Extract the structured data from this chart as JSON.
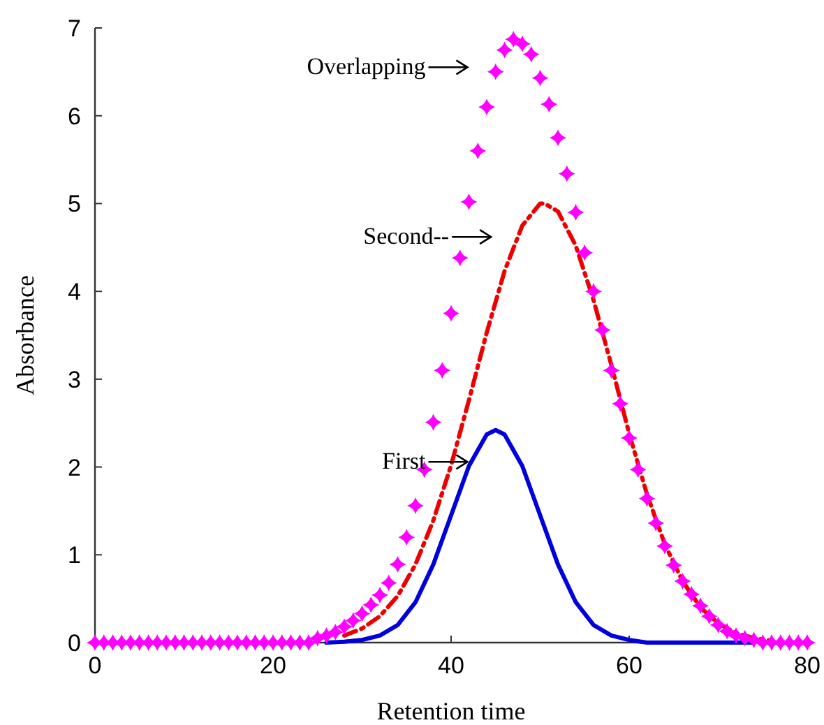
{
  "chart_data": {
    "type": "line",
    "xlabel": "Retention time",
    "ylabel": "Absorbance",
    "xlim": [
      0,
      80
    ],
    "ylim": [
      0,
      7
    ],
    "xticks": [
      0,
      20,
      40,
      60,
      80
    ],
    "yticks": [
      0,
      1,
      2,
      3,
      4,
      5,
      6,
      7
    ],
    "grid": false,
    "series": [
      {
        "type": "scatter",
        "marker": "diamond",
        "color": "#ff00ff",
        "x": [
          0,
          1,
          2,
          3,
          4,
          5,
          6,
          7,
          8,
          9,
          10,
          11,
          12,
          13,
          14,
          15,
          16,
          17,
          18,
          19,
          20,
          21,
          22,
          23,
          24,
          25,
          26,
          27,
          28,
          29,
          30,
          31,
          32,
          33,
          34,
          35,
          36,
          37,
          38,
          39,
          40,
          41,
          42,
          43,
          44,
          45,
          46,
          47,
          48,
          49,
          50,
          51,
          52,
          53,
          54,
          55,
          56,
          57,
          58,
          59,
          60,
          61,
          62,
          63,
          64,
          65,
          66,
          67,
          68,
          69,
          70,
          71,
          72,
          73,
          74,
          75,
          76,
          77,
          78,
          79,
          80
        ],
        "values": [
          0,
          0,
          0,
          0,
          0,
          0,
          0,
          0,
          0,
          0,
          0,
          0,
          0,
          0,
          0,
          0,
          0,
          0,
          0,
          0,
          0,
          0,
          0,
          0,
          0,
          0.05,
          0.08,
          0.12,
          0.18,
          0.25,
          0.33,
          0.43,
          0.54,
          0.68,
          0.89,
          1.2,
          1.56,
          1.97,
          2.51,
          3.1,
          3.75,
          4.38,
          5.02,
          5.6,
          6.1,
          6.5,
          6.75,
          6.87,
          6.82,
          6.7,
          6.43,
          6.13,
          5.75,
          5.34,
          4.9,
          4.44,
          4.0,
          3.56,
          3.1,
          2.72,
          2.33,
          1.97,
          1.64,
          1.36,
          1.1,
          0.88,
          0.7,
          0.55,
          0.42,
          0.3,
          0.2,
          0.13,
          0.08,
          0.05,
          0.03,
          0,
          0,
          0,
          0,
          0,
          0
        ]
      },
      {
        "line_style": "dashed",
        "color": "#ee0000",
        "x": [
          28,
          30,
          32,
          34,
          36,
          38,
          40,
          42,
          44,
          46,
          48,
          50,
          50.5,
          52,
          54,
          56,
          58,
          60,
          62,
          64,
          66,
          68,
          70,
          72,
          74,
          76
        ],
        "values": [
          0.08,
          0.16,
          0.3,
          0.53,
          0.89,
          1.39,
          2.02,
          2.76,
          3.53,
          4.23,
          4.75,
          5.0,
          5.0,
          4.91,
          4.52,
          3.9,
          3.16,
          2.38,
          1.69,
          1.12,
          0.7,
          0.4,
          0.22,
          0.11,
          0.05,
          0.02
        ]
      },
      {
        "line_style": "solid",
        "color": "#0000dd",
        "x": [
          26,
          28,
          30,
          32,
          34,
          36,
          38,
          40,
          42,
          44,
          45,
          46,
          48,
          50,
          52,
          54,
          56,
          58,
          60,
          62,
          66,
          70,
          74
        ],
        "values": [
          0,
          0.01,
          0.03,
          0.08,
          0.2,
          0.46,
          0.89,
          1.45,
          2.01,
          2.37,
          2.42,
          2.37,
          2.01,
          1.45,
          0.89,
          0.46,
          0.2,
          0.08,
          0.03,
          0,
          0,
          0,
          0
        ]
      }
    ],
    "annotations": [
      "Overlapping",
      "Second--",
      "First"
    ]
  }
}
